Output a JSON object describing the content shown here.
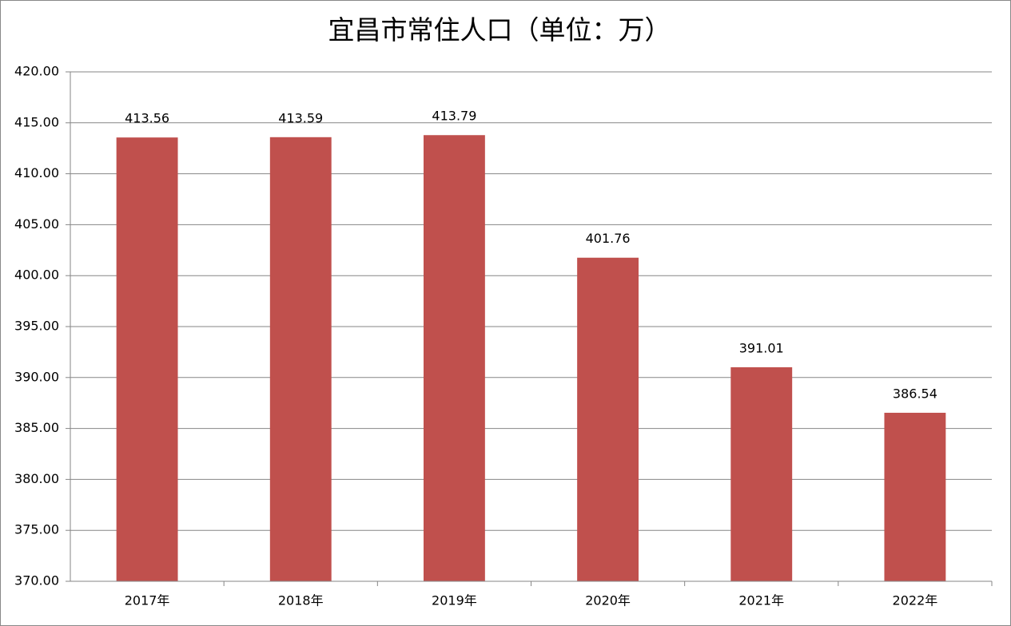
{
  "chart_data": {
    "type": "bar",
    "title": "宜昌市常住人口（单位：万）",
    "categories": [
      "2017年",
      "2018年",
      "2019年",
      "2020年",
      "2021年",
      "2022年"
    ],
    "values": [
      413.56,
      413.59,
      413.79,
      401.76,
      391.01,
      386.54
    ],
    "color": "#c0504d",
    "ylim": [
      370,
      420
    ],
    "yticks": [
      {
        "value": 370,
        "label": "370.00"
      },
      {
        "value": 375,
        "label": "375.00"
      },
      {
        "value": 380,
        "label": "380.00"
      },
      {
        "value": 385,
        "label": "385.00"
      },
      {
        "value": 390,
        "label": "390.00"
      },
      {
        "value": 395,
        "label": "395.00"
      },
      {
        "value": 400,
        "label": "400.00"
      },
      {
        "value": 405,
        "label": "405.00"
      },
      {
        "value": 410,
        "label": "410.00"
      },
      {
        "value": 415,
        "label": "415.00"
      },
      {
        "value": 420,
        "label": "420.00"
      }
    ],
    "grid": true
  }
}
